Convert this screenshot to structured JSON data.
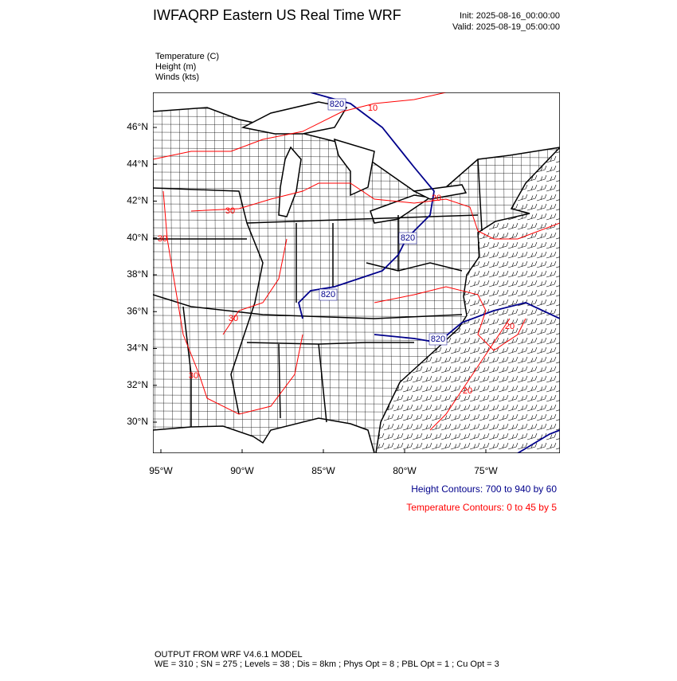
{
  "header": {
    "title": "IWFAQRP Eastern US Real Time WRF",
    "init": "Init: 2025-08-16_00:00:00",
    "valid": "Valid: 2025-08-19_05:00:00"
  },
  "fields": [
    "Temperature   (C)",
    "Height   (m)",
    "Winds   (kts)"
  ],
  "map": {
    "lat_labels": [
      "46°N",
      "44°N",
      "42°N",
      "40°N",
      "38°N",
      "36°N",
      "34°N",
      "32°N",
      "30°N"
    ],
    "lon_labels": [
      "95°W",
      "90°W",
      "85°W",
      "80°W",
      "75°W"
    ],
    "height_contour_labels": [
      "820",
      "820",
      "820",
      "820"
    ],
    "temperature_contour_labels": [
      "10",
      "20",
      "30",
      "30",
      "30",
      "20",
      "30",
      "20"
    ]
  },
  "legend": {
    "height": "Height Contours: 700 to 940 by 60",
    "temperature": "Temperature Contours: 0 to 45 by 5"
  },
  "footer": {
    "model": "OUTPUT FROM WRF V4.6.1 MODEL",
    "settings": "WE = 310 ; SN = 275 ; Levels = 38 ; Dis = 8km ; Phys Opt = 8 ; PBL Opt = 1 ; Cu Opt = 3"
  }
}
